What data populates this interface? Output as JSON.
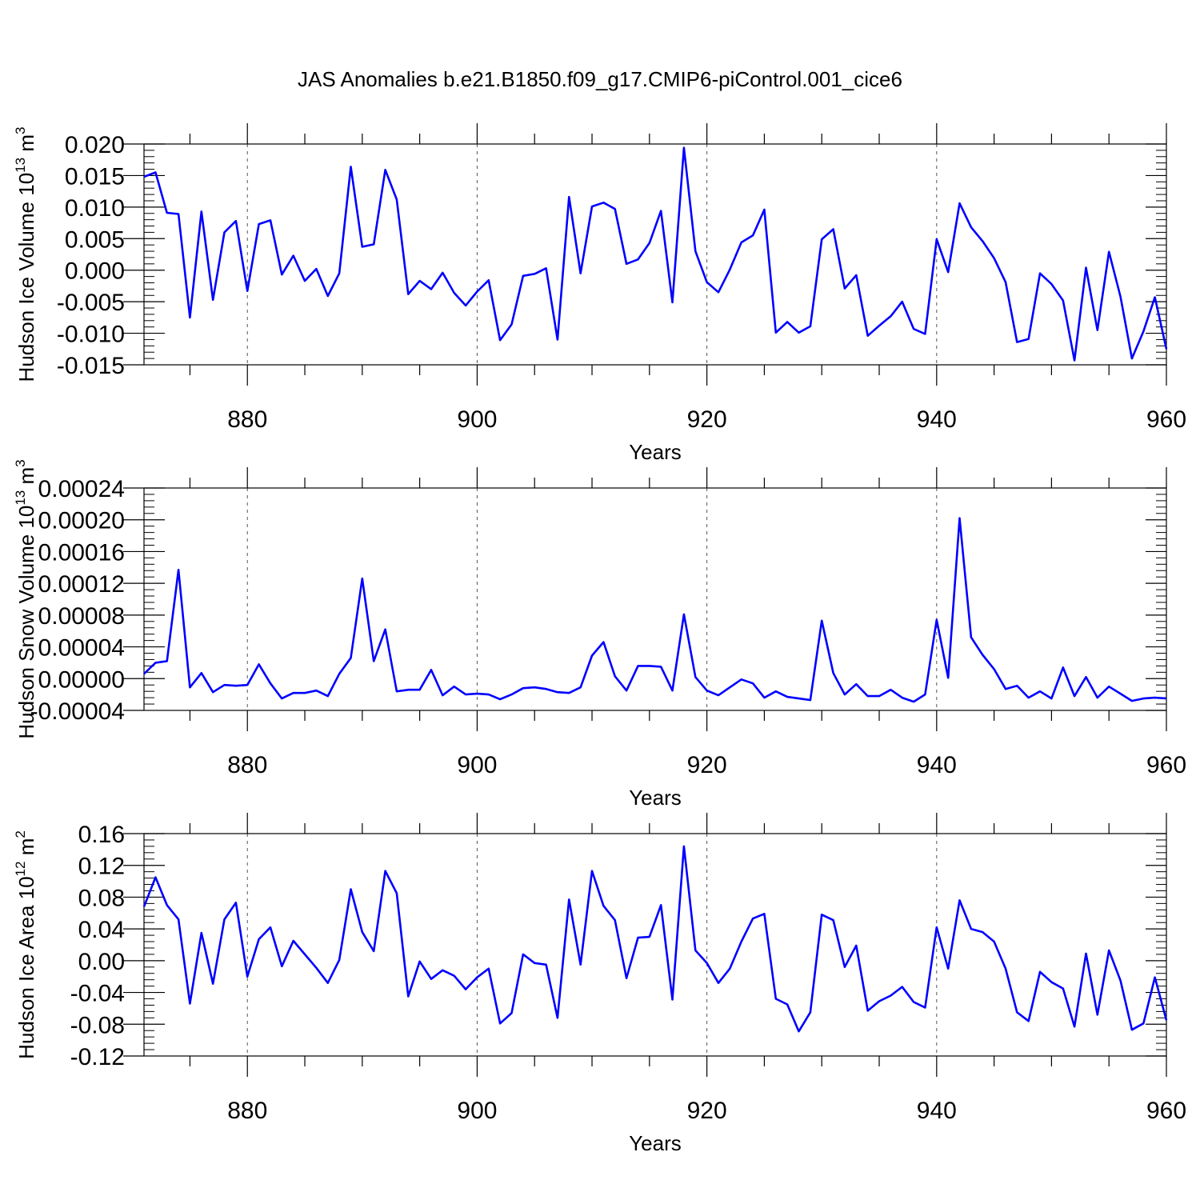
{
  "title": "JAS Anomalies b.e21.B1850.f09_g17.CMIP6-piControl.001_cice6",
  "chart_data": [
    {
      "type": "line",
      "ylabel_main": "Hudson Ice Volume 10",
      "ylabel_exp": "13",
      "ylabel_unit": " m",
      "ylabel_unit_exp": "3",
      "xlabel": "Years",
      "xlim": [
        871,
        960
      ],
      "ylim": [
        -0.015,
        0.02
      ],
      "yticks": [
        "0.020",
        "0.015",
        "0.010",
        "0.005",
        "0.000",
        "-0.005",
        "-0.010",
        "-0.015"
      ],
      "xticks": [
        "880",
        "900",
        "920",
        "940",
        "960"
      ],
      "grid": "dashed vertical at major x ticks",
      "color": "#0000ff",
      "x": [
        871,
        872,
        873,
        874,
        875,
        876,
        877,
        878,
        879,
        880,
        881,
        882,
        883,
        884,
        885,
        886,
        887,
        888,
        889,
        890,
        891,
        892,
        893,
        894,
        895,
        896,
        897,
        898,
        899,
        900,
        901,
        902,
        903,
        904,
        905,
        906,
        907,
        908,
        909,
        910,
        911,
        912,
        913,
        914,
        915,
        916,
        917,
        918,
        919,
        920,
        921,
        922,
        923,
        924,
        925,
        926,
        927,
        928,
        929,
        930,
        931,
        932,
        933,
        934,
        935,
        936,
        937,
        938,
        939,
        940,
        941,
        942,
        943,
        944,
        945,
        946,
        947,
        948,
        949,
        950,
        951,
        952,
        953,
        954,
        955,
        956,
        957,
        958,
        959,
        960
      ],
      "values": [
        0.0148,
        0.0155,
        0.0091,
        0.0089,
        -0.0075,
        0.0093,
        -0.0047,
        0.006,
        0.0078,
        -0.0033,
        0.0073,
        0.0079,
        -0.0007,
        0.0023,
        -0.0017,
        0.0002,
        -0.0041,
        -0.0005,
        0.0164,
        0.0037,
        0.0041,
        0.0159,
        0.0112,
        -0.0038,
        -0.0017,
        -0.003,
        -0.0004,
        -0.0036,
        -0.0056,
        -0.0034,
        -0.0016,
        -0.0111,
        -0.0086,
        -0.0009,
        -0.0006,
        0.0003,
        -0.011,
        0.0116,
        -0.0005,
        0.0101,
        0.0107,
        0.0097,
        0.001,
        0.0017,
        0.0043,
        0.0094,
        -0.0051,
        0.0194,
        0.003,
        -0.0019,
        -0.0035,
        0.0001,
        0.0044,
        0.0055,
        0.0096,
        -0.0099,
        -0.0082,
        -0.0099,
        -0.0089,
        0.0049,
        0.0065,
        -0.0029,
        -0.0008,
        -0.0104,
        -0.0088,
        -0.0073,
        -0.005,
        -0.0093,
        -0.0101,
        0.0049,
        -0.0003,
        0.0106,
        0.0068,
        0.0046,
        0.0019,
        -0.0019,
        -0.0114,
        -0.0109,
        -0.0005,
        -0.0022,
        -0.0048,
        -0.0143,
        0.0004,
        -0.0095,
        0.0029,
        -0.0042,
        -0.014,
        -0.0097,
        -0.0043,
        -0.0125
      ]
    },
    {
      "type": "line",
      "ylabel_main": "Hudson Snow Volume 10",
      "ylabel_exp": "13",
      "ylabel_unit": " m",
      "ylabel_unit_exp": "3",
      "xlabel": "Years",
      "xlim": [
        871,
        960
      ],
      "ylim": [
        -4e-05,
        0.00024
      ],
      "yticks": [
        "0.00024",
        "0.00020",
        "0.00016",
        "0.00012",
        "0.00008",
        "0.00004",
        "0.00000",
        "-0.00004"
      ],
      "xticks": [
        "880",
        "900",
        "920",
        "940",
        "960"
      ],
      "grid": "dashed vertical at major x ticks",
      "color": "#0000ff",
      "x": [
        871,
        872,
        873,
        874,
        875,
        876,
        877,
        878,
        879,
        880,
        881,
        882,
        883,
        884,
        885,
        886,
        887,
        888,
        889,
        890,
        891,
        892,
        893,
        894,
        895,
        896,
        897,
        898,
        899,
        900,
        901,
        902,
        903,
        904,
        905,
        906,
        907,
        908,
        909,
        910,
        911,
        912,
        913,
        914,
        915,
        916,
        917,
        918,
        919,
        920,
        921,
        922,
        923,
        924,
        925,
        926,
        927,
        928,
        929,
        930,
        931,
        932,
        933,
        934,
        935,
        936,
        937,
        938,
        939,
        940,
        941,
        942,
        943,
        944,
        945,
        946,
        947,
        948,
        949,
        950,
        951,
        952,
        953,
        954,
        955,
        956,
        957,
        958,
        959,
        960
      ],
      "values": [
        6e-06,
        2e-05,
        2.2e-05,
        0.000137,
        -1.1e-05,
        7e-06,
        -1.7e-05,
        -8e-06,
        -9e-06,
        -8e-06,
        1.8e-05,
        -6e-06,
        -2.5e-05,
        -1.8e-05,
        -1.8e-05,
        -1.5e-05,
        -2.2e-05,
        6e-06,
        2.6e-05,
        0.000126,
        2.2e-05,
        6.2e-05,
        -1.6e-05,
        -1.4e-05,
        -1.4e-05,
        1.1e-05,
        -2.1e-05,
        -1e-05,
        -2e-05,
        -1.9e-05,
        -2e-05,
        -2.6e-05,
        -2e-05,
        -1.2e-05,
        -1.1e-05,
        -1.3e-05,
        -1.7e-05,
        -1.8e-05,
        -1.1e-05,
        2.9e-05,
        4.6e-05,
        3e-06,
        -1.5e-05,
        1.6e-05,
        1.6e-05,
        1.5e-05,
        -1.5e-05,
        8.1e-05,
        2e-06,
        -1.5e-05,
        -2.1e-05,
        -1.1e-05,
        -1e-06,
        -6e-06,
        -2.4e-05,
        -1.6e-05,
        -2.3e-05,
        -2.5e-05,
        -2.7e-05,
        7.3e-05,
        7e-06,
        -2e-05,
        -7e-06,
        -2.2e-05,
        -2.2e-05,
        -1.4e-05,
        -2.4e-05,
        -2.9e-05,
        -2e-05,
        7.4e-05,
        1e-06,
        0.000202,
        5.2e-05,
        3e-05,
        1.2e-05,
        -1.3e-05,
        -9e-06,
        -2.4e-05,
        -1.6e-05,
        -2.5e-05,
        1.4e-05,
        -2.2e-05,
        2e-06,
        -2.4e-05,
        -1e-05,
        -1.9e-05,
        -2.8e-05,
        -2.5e-05,
        -2.4e-05,
        -2.5e-05
      ]
    },
    {
      "type": "line",
      "ylabel_main": "Hudson Ice Area 10",
      "ylabel_exp": "12",
      "ylabel_unit": " m",
      "ylabel_unit_exp": "2",
      "xlabel": "Years",
      "xlim": [
        871,
        960
      ],
      "ylim": [
        -0.12,
        0.16
      ],
      "yticks": [
        "0.16",
        "0.12",
        "0.08",
        "0.04",
        "0.00",
        "-0.04",
        "-0.08",
        "-0.12"
      ],
      "xticks": [
        "880",
        "900",
        "920",
        "940",
        "960"
      ],
      "grid": "dashed vertical at major x ticks",
      "color": "#0000ff",
      "x": [
        871,
        872,
        873,
        874,
        875,
        876,
        877,
        878,
        879,
        880,
        881,
        882,
        883,
        884,
        885,
        886,
        887,
        888,
        889,
        890,
        891,
        892,
        893,
        894,
        895,
        896,
        897,
        898,
        899,
        900,
        901,
        902,
        903,
        904,
        905,
        906,
        907,
        908,
        909,
        910,
        911,
        912,
        913,
        914,
        915,
        916,
        917,
        918,
        919,
        920,
        921,
        922,
        923,
        924,
        925,
        926,
        927,
        928,
        929,
        930,
        931,
        932,
        933,
        934,
        935,
        936,
        937,
        938,
        939,
        940,
        941,
        942,
        943,
        944,
        945,
        946,
        947,
        948,
        949,
        950,
        951,
        952,
        953,
        954,
        955,
        956,
        957,
        958,
        959,
        960
      ],
      "values": [
        0.068,
        0.105,
        0.07,
        0.052,
        -0.054,
        0.035,
        -0.029,
        0.052,
        0.073,
        -0.02,
        0.027,
        0.042,
        -0.007,
        0.025,
        0.008,
        -0.009,
        -0.028,
        0.001,
        0.09,
        0.036,
        0.012,
        0.113,
        0.085,
        -0.045,
        -0.001,
        -0.023,
        -0.012,
        -0.019,
        -0.036,
        -0.021,
        -0.01,
        -0.079,
        -0.066,
        0.008,
        -0.003,
        -0.005,
        -0.072,
        0.077,
        -0.005,
        0.113,
        0.069,
        0.051,
        -0.022,
        0.029,
        0.03,
        0.07,
        -0.049,
        0.144,
        0.013,
        -0.003,
        -0.028,
        -0.01,
        0.024,
        0.053,
        0.059,
        -0.048,
        -0.055,
        -0.089,
        -0.065,
        0.058,
        0.051,
        -0.008,
        0.019,
        -0.063,
        -0.051,
        -0.044,
        -0.033,
        -0.052,
        -0.059,
        0.042,
        -0.01,
        0.076,
        0.04,
        0.036,
        0.024,
        -0.01,
        -0.065,
        -0.076,
        -0.014,
        -0.027,
        -0.035,
        -0.083,
        0.009,
        -0.068,
        0.013,
        -0.025,
        -0.087,
        -0.079,
        -0.021,
        -0.075
      ]
    }
  ]
}
